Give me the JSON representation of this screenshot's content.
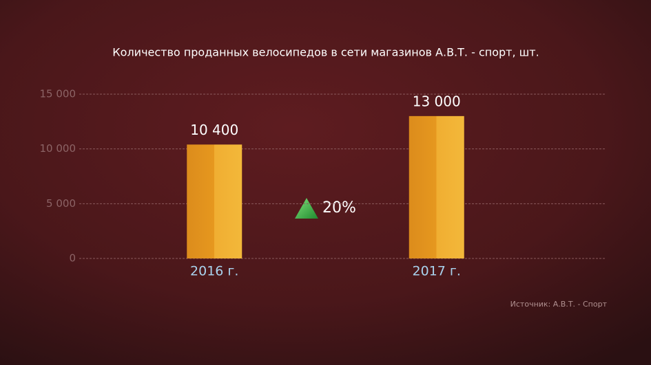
{
  "chart_data": {
    "type": "bar",
    "title": "Количество проданных велосипедов в сети магазинов А.В.Т. - спорт, шт.",
    "categories": [
      "2016 г.",
      "2017 г."
    ],
    "values": [
      10400,
      13000
    ],
    "value_labels": [
      "10 400",
      "13 000"
    ],
    "color": "#e8a027",
    "ylim": [
      0,
      15000
    ],
    "yticks": [
      0,
      {
        "value": 5000,
        "label": "5 000"
      },
      {
        "value": 10000,
        "label": "10 000"
      },
      {
        "value": 15000,
        "label": "15 000"
      }
    ],
    "grid": true,
    "annotation": "20%",
    "source": "Источник: А.В.Т. - Спорт"
  }
}
